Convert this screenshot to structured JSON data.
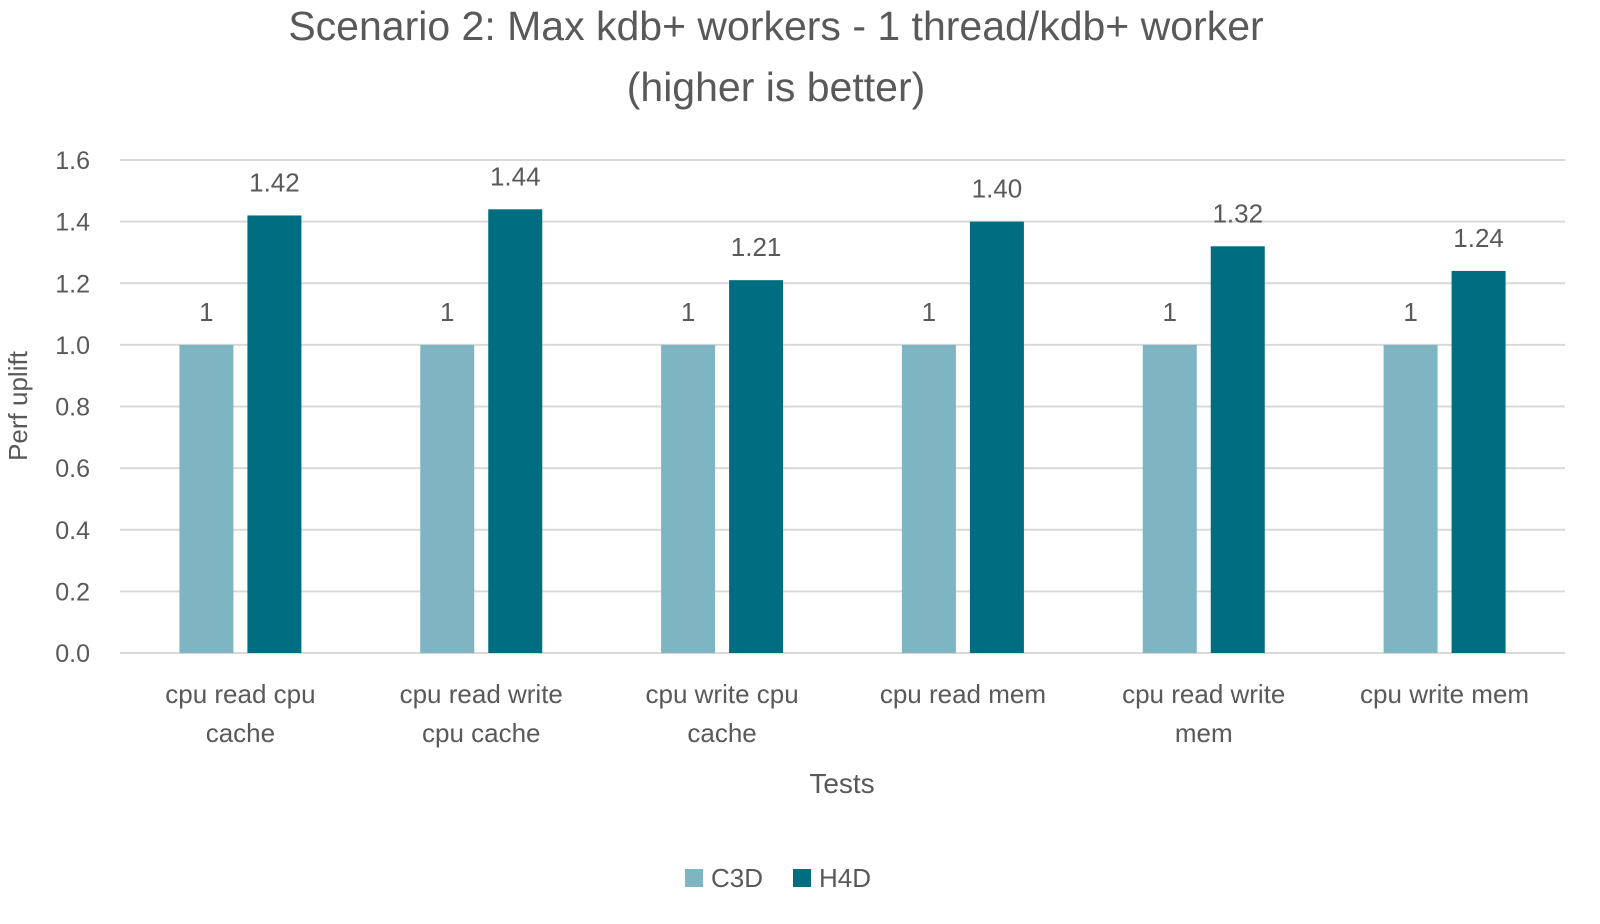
{
  "chart_data": {
    "type": "bar",
    "title": [
      "Scenario 2: Max kdb+ workers - 1 thread/kdb+ worker",
      "(higher is better)"
    ],
    "xlabel": "Tests",
    "ylabel": "Perf uplift",
    "ylim": [
      0,
      1.6
    ],
    "yticks": [
      "0.0",
      "0.2",
      "0.4",
      "0.6",
      "0.8",
      "1.0",
      "1.2",
      "1.4",
      "1.6"
    ],
    "grid": true,
    "legend_position": "bottom",
    "categories": [
      [
        "cpu read cpu",
        "cache"
      ],
      [
        "cpu read write",
        "cpu cache"
      ],
      [
        "cpu write cpu",
        "cache"
      ],
      [
        "cpu read mem"
      ],
      [
        "cpu read write",
        "mem"
      ],
      [
        "cpu write mem"
      ]
    ],
    "series": [
      {
        "name": "C3D",
        "color": "#7fb5c2",
        "values": [
          1,
          1,
          1,
          1,
          1,
          1
        ],
        "labels": [
          "1",
          "1",
          "1",
          "1",
          "1",
          "1"
        ]
      },
      {
        "name": "H4D",
        "color": "#006e80",
        "values": [
          1.42,
          1.44,
          1.21,
          1.4,
          1.32,
          1.24
        ],
        "labels": [
          "1.42",
          "1.44",
          "1.21",
          "1.40",
          "1.32",
          "1.24"
        ]
      }
    ]
  }
}
